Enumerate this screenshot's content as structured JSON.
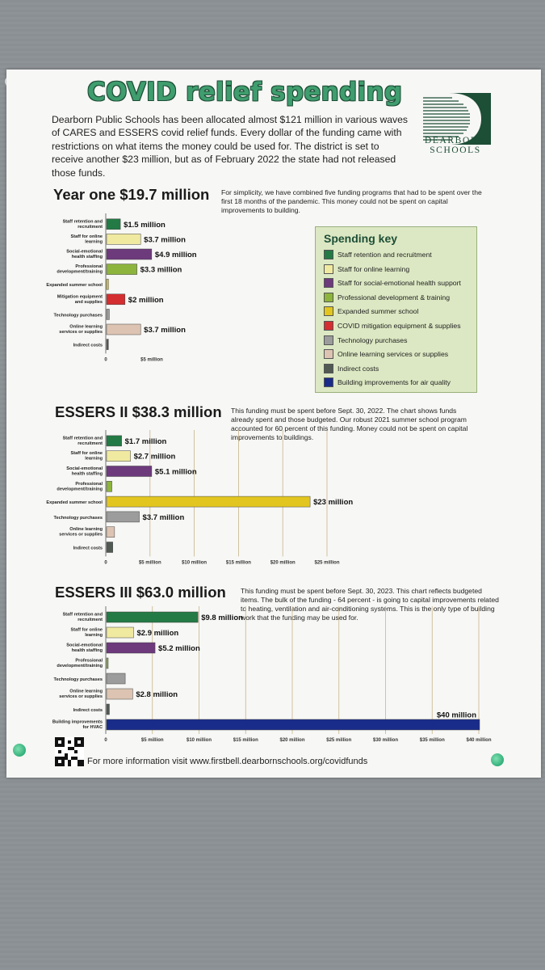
{
  "poster": {
    "title": "COVID relief spending",
    "intro": "Dearborn Public Schools has been allocated almost $121 million in various waves of CARES and ESSERS covid relief funds. Every dollar of the funding came with restrictions on what items the money could be used for.  The district is set to receive another $23 million, but as of February 2022 the state had not released those funds.",
    "logo_text_1": "DEARBORN",
    "logo_text_2": "SCHOOLS",
    "footer": "For more information visit www.firstbell.dearbornschools.org/covidfunds"
  },
  "colors": {
    "staff_retention": "#237a45",
    "online_staff": "#f0e9a0",
    "sel_health": "#6d3a7c",
    "prof_dev": "#8db43c",
    "summer_school": "#e2c61f",
    "mitigation": "#d42e30",
    "technology": "#9c9c9c",
    "online_services": "#ddc4b2",
    "indirect": "#505a53",
    "hvac": "#1a2c8a"
  },
  "key": {
    "title": "Spending key",
    "items": [
      {
        "label": "Staff retention and recruitment",
        "color": "#237a45"
      },
      {
        "label": "Staff for online learning",
        "color": "#f0e9a0"
      },
      {
        "label": "Staff for social-emotional health support",
        "color": "#6d3a7c"
      },
      {
        "label": "Professional development & training",
        "color": "#8db43c"
      },
      {
        "label": "Expanded summer school",
        "color": "#e2c61f"
      },
      {
        "label": "COVID mitigation equipment & supplies",
        "color": "#d42e30"
      },
      {
        "label": "Technology purchases",
        "color": "#9c9c9c"
      },
      {
        "label": "Online learning services or supplies",
        "color": "#ddc4b2"
      },
      {
        "label": "Indirect costs",
        "color": "#505a53"
      },
      {
        "label": "Building improvements for air quality",
        "color": "#1a2c8a"
      }
    ]
  },
  "sections": [
    {
      "title": "Year one $19.7 million",
      "desc": "For simplicity, we have combined five funding programs that had to be spent over the first 18 months of the pandemic. This money could not be spent on capital improvements to building."
    },
    {
      "title": "ESSERS II $38.3 million",
      "desc": "This funding must be spent before Sept. 30, 2022. The chart shows funds already spent and those budgeted.  Our robust 2021 summer school program accounted for 60 percent of this funding.  Money could not be spent on capital improvements to buildings."
    },
    {
      "title": "ESSERS III $63.0 million",
      "desc": "This funding must be spent before Sept. 30, 2023.  This chart reflects budgeted items. The bulk of the funding - 64 percent - is going to capital improvements related to heating, ventilation and air-conditioning systems. This is the only type of building work that the funding may be used for."
    }
  ],
  "chart_data": [
    {
      "type": "bar",
      "title": "Year one $19.7 million",
      "orientation": "horizontal",
      "categories": [
        "Staff retention and recruitment",
        "Staff for online learning",
        "Social-emotional health staffing",
        "Professional development/training",
        "Expanded summer school",
        "Mitigation equipment and supplies",
        "Technology purchases",
        "Online learning services or supplies",
        "Indirect costs"
      ],
      "values": [
        1.5,
        3.7,
        4.9,
        3.3,
        0.2,
        2.0,
        0.3,
        3.7,
        0.2
      ],
      "data_labels": [
        "$1.5 million",
        "$3.7 million",
        "$4.9 million",
        "$3.3 million",
        "",
        "$2 million",
        "",
        "$3.7 million",
        ""
      ],
      "colors": [
        "#237a45",
        "#f0e9a0",
        "#6d3a7c",
        "#8db43c",
        "#e2c61f",
        "#d42e30",
        "#9c9c9c",
        "#ddc4b2",
        "#505a53"
      ],
      "xlim": [
        0,
        5
      ],
      "xticks": [
        0,
        5
      ],
      "xtick_labels": [
        "0",
        "$5 million"
      ],
      "grid": false
    },
    {
      "type": "bar",
      "title": "ESSERS II $38.3 million",
      "orientation": "horizontal",
      "categories": [
        "Staff retention and recruitment",
        "Staff for online learning",
        "Social-emotional health staffing",
        "Professional development/training",
        "Expanded summer school",
        "Technology purchases",
        "Online learning services or supplies",
        "Indirect costs"
      ],
      "values": [
        1.7,
        2.7,
        5.1,
        0.6,
        23,
        3.7,
        0.9,
        0.7
      ],
      "data_labels": [
        "$1.7 million",
        "$2.7 million",
        "$5.1 million",
        "",
        "$23 million",
        "$3.7 million",
        "",
        ""
      ],
      "colors": [
        "#237a45",
        "#f0e9a0",
        "#6d3a7c",
        "#8db43c",
        "#e2c61f",
        "#9c9c9c",
        "#ddc4b2",
        "#505a53"
      ],
      "xlim": [
        0,
        25
      ],
      "xticks": [
        0,
        5,
        10,
        15,
        20,
        25
      ],
      "xtick_labels": [
        "0",
        "$5 million",
        "$10 million",
        "$15 million",
        "$20 million",
        "$25 million"
      ],
      "grid": true
    },
    {
      "type": "bar",
      "title": "ESSERS III $63.0 million",
      "orientation": "horizontal",
      "categories": [
        "Staff retention and recruitment",
        "Staff for online learning",
        "Social-emotional health staffing",
        "Professional development/training",
        "Technology purchases",
        "Online learning services or supplies",
        "Indirect costs",
        "Building improvements for HVAC"
      ],
      "values": [
        9.8,
        2.9,
        5.2,
        0.1,
        2.0,
        2.8,
        0.3,
        40
      ],
      "data_labels": [
        "$9.8 million",
        "$2.9 million",
        "$5.2 million",
        "",
        "",
        "$2.8 million",
        "",
        "$40 million"
      ],
      "colors": [
        "#237a45",
        "#f0e9a0",
        "#6d3a7c",
        "#8db43c",
        "#9c9c9c",
        "#ddc4b2",
        "#505a53",
        "#1a2c8a"
      ],
      "xlim": [
        0,
        40
      ],
      "xticks": [
        0,
        5,
        10,
        15,
        20,
        25,
        30,
        35,
        40
      ],
      "xtick_labels": [
        "0",
        "$5 million",
        "$10 million",
        "$15 million",
        "$20 million",
        "$25 million",
        "$30 million",
        "$35 million",
        "$40 million"
      ],
      "grid": true
    }
  ]
}
